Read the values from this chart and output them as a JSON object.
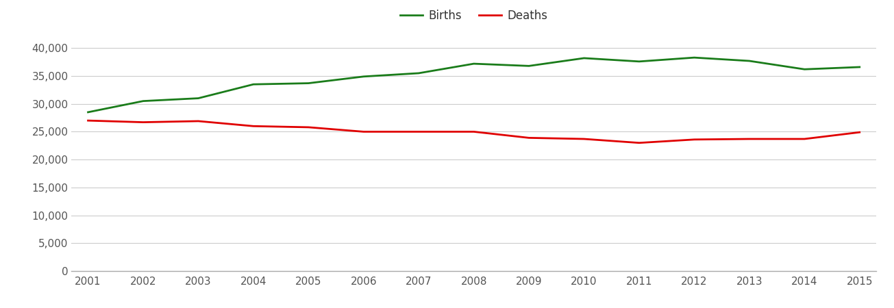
{
  "years": [
    2001,
    2002,
    2003,
    2004,
    2005,
    2006,
    2007,
    2008,
    2009,
    2010,
    2011,
    2012,
    2013,
    2014,
    2015
  ],
  "births": [
    28500,
    30500,
    31000,
    33500,
    33700,
    34900,
    35500,
    37200,
    36800,
    38200,
    37600,
    38300,
    37700,
    36200,
    36600
  ],
  "deaths": [
    27000,
    26700,
    26900,
    26000,
    25800,
    25000,
    25000,
    25000,
    23900,
    23700,
    23000,
    23600,
    23700,
    23700,
    24900
  ],
  "births_color": "#1a7c1a",
  "deaths_color": "#e00000",
  "line_width": 2.0,
  "legend_labels": [
    "Births",
    "Deaths"
  ],
  "ylim": [
    0,
    42000
  ],
  "yticks": [
    0,
    5000,
    10000,
    15000,
    20000,
    25000,
    30000,
    35000,
    40000
  ],
  "xlim": [
    2001,
    2015
  ],
  "background_color": "#ffffff",
  "grid_color": "#cccccc",
  "tick_color": "#555555",
  "legend_fontsize": 12,
  "tick_fontsize": 11
}
